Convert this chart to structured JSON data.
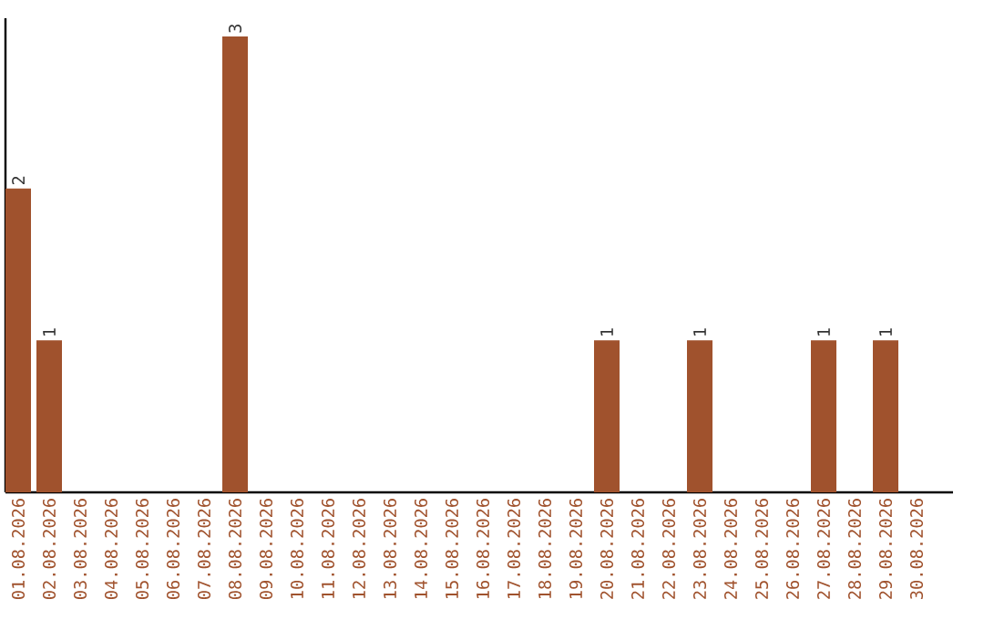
{
  "chart_data": {
    "type": "bar",
    "categories": [
      "01.08.2026",
      "02.08.2026",
      "03.08.2026",
      "04.08.2026",
      "05.08.2026",
      "06.08.2026",
      "07.08.2026",
      "08.08.2026",
      "09.08.2026",
      "10.08.2026",
      "11.08.2026",
      "12.08.2026",
      "13.08.2026",
      "14.08.2026",
      "15.08.2026",
      "16.08.2026",
      "17.08.2026",
      "18.08.2026",
      "19.08.2026",
      "20.08.2026",
      "21.08.2026",
      "22.08.2026",
      "23.08.2026",
      "24.08.2026",
      "25.08.2026",
      "26.08.2026",
      "27.08.2026",
      "28.08.2026",
      "29.08.2026",
      "30.08.2026"
    ],
    "values": [
      2,
      1,
      0,
      0,
      0,
      0,
      0,
      3,
      0,
      0,
      0,
      0,
      0,
      0,
      0,
      0,
      0,
      0,
      0,
      1,
      0,
      0,
      1,
      0,
      0,
      0,
      1,
      0,
      1,
      0
    ],
    "value_labels": [
      "2",
      "1",
      null,
      null,
      null,
      null,
      null,
      "3",
      null,
      null,
      null,
      null,
      null,
      null,
      null,
      null,
      null,
      null,
      null,
      "1",
      null,
      null,
      "1",
      null,
      null,
      null,
      "1",
      null,
      "1",
      null
    ],
    "color": "#a0522d"
  }
}
